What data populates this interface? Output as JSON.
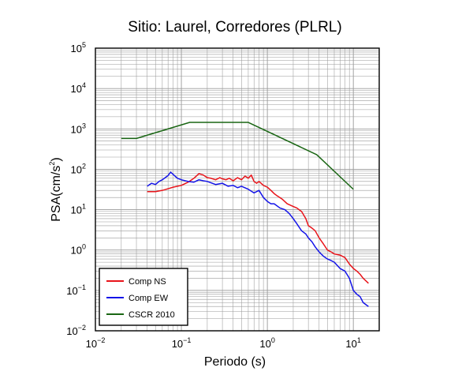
{
  "chart_data": {
    "type": "line",
    "title": "Sitio: Laurel, Corredores (PLRL)",
    "xlabel": "Periodo (s)",
    "ylabel": {
      "base": "PSA(cm/s",
      "sup": "2",
      "close": ")"
    },
    "x_scale": "log",
    "y_scale": "log",
    "xlim": [
      0.01,
      20
    ],
    "ylim": [
      0.01,
      100000
    ],
    "x_ticks": [
      {
        "value": 0.01,
        "base": "10",
        "sup": "−2"
      },
      {
        "value": 0.1,
        "base": "10",
        "sup": "−1"
      },
      {
        "value": 1,
        "base": "10",
        "sup": "0"
      },
      {
        "value": 10,
        "base": "10",
        "sup": "1"
      }
    ],
    "y_ticks": [
      {
        "value": 0.01,
        "base": "10",
        "sup": "−2"
      },
      {
        "value": 0.1,
        "base": "10",
        "sup": "−1"
      },
      {
        "value": 1,
        "base": "10",
        "sup": "0"
      },
      {
        "value": 10,
        "base": "10",
        "sup": "1"
      },
      {
        "value": 100,
        "base": "10",
        "sup": "2"
      },
      {
        "value": 1000,
        "base": "10",
        "sup": "3"
      },
      {
        "value": 10000,
        "base": "10",
        "sup": "4"
      },
      {
        "value": 100000,
        "base": "10",
        "sup": "5"
      }
    ],
    "grid": true,
    "legend_position": "bottom-left",
    "series": [
      {
        "name": "Comp NS",
        "color": "#e8141a",
        "x": [
          0.04,
          0.05,
          0.06,
          0.07,
          0.08,
          0.09,
          0.1,
          0.12,
          0.14,
          0.16,
          0.18,
          0.2,
          0.22,
          0.25,
          0.28,
          0.3,
          0.33,
          0.36,
          0.4,
          0.45,
          0.5,
          0.55,
          0.6,
          0.65,
          0.7,
          0.75,
          0.8,
          0.9,
          1.0,
          1.1,
          1.2,
          1.3,
          1.5,
          1.7,
          2.0,
          2.2,
          2.5,
          2.8,
          3.0,
          3.3,
          3.6,
          4.0,
          4.5,
          5.0,
          5.5,
          6.0,
          7.0,
          8.0,
          9.0,
          10.0,
          11.0,
          12.0,
          13.0,
          15.0
        ],
        "y": [
          28,
          28,
          30,
          33,
          36,
          38,
          40,
          48,
          60,
          78,
          72,
          62,
          60,
          55,
          62,
          58,
          55,
          60,
          52,
          62,
          55,
          68,
          60,
          72,
          50,
          45,
          50,
          40,
          36,
          30,
          25,
          22,
          18,
          14,
          12,
          11,
          9,
          6,
          4,
          3.5,
          3.0,
          2.0,
          1.4,
          1.0,
          0.9,
          0.8,
          0.75,
          0.65,
          0.45,
          0.35,
          0.3,
          0.25,
          0.2,
          0.15
        ]
      },
      {
        "name": "Comp EW",
        "color": "#1414e8",
        "x": [
          0.04,
          0.045,
          0.05,
          0.055,
          0.06,
          0.07,
          0.075,
          0.08,
          0.09,
          0.1,
          0.12,
          0.14,
          0.16,
          0.18,
          0.2,
          0.25,
          0.3,
          0.35,
          0.4,
          0.45,
          0.5,
          0.6,
          0.7,
          0.8,
          0.9,
          1.0,
          1.1,
          1.2,
          1.4,
          1.6,
          1.8,
          2.0,
          2.2,
          2.5,
          2.8,
          3.0,
          3.3,
          3.6,
          4.0,
          4.5,
          5.0,
          5.5,
          6.0,
          7.0,
          8.0,
          9.0,
          10.0,
          11.0,
          12.0,
          13.0,
          15.0
        ],
        "y": [
          38,
          45,
          42,
          50,
          55,
          70,
          85,
          75,
          60,
          55,
          50,
          48,
          55,
          52,
          50,
          42,
          45,
          38,
          40,
          35,
          38,
          32,
          26,
          30,
          20,
          16,
          14,
          14,
          11,
          10,
          8,
          6,
          4.5,
          3.0,
          2.5,
          2.0,
          1.6,
          1.2,
          0.9,
          0.7,
          0.6,
          0.55,
          0.5,
          0.35,
          0.3,
          0.2,
          0.1,
          0.08,
          0.07,
          0.05,
          0.04
        ]
      },
      {
        "name": "CSCR 2010",
        "color": "#1a6614",
        "x": [
          0.02,
          0.03,
          0.125,
          0.6,
          3.75,
          10.0
        ],
        "y": [
          580,
          580,
          1450,
          1450,
          230,
          32
        ]
      }
    ]
  }
}
